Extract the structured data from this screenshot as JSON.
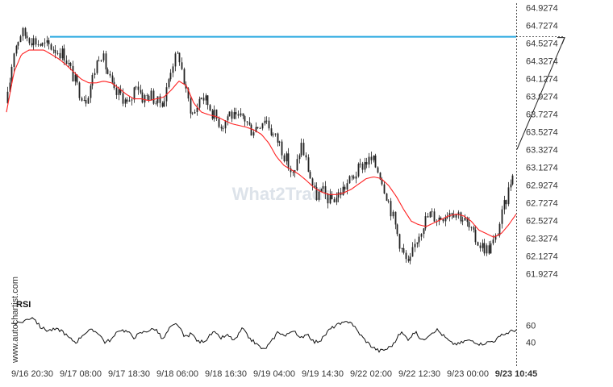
{
  "chart_data": {
    "type": "candlestick",
    "watermark": "What2Trade",
    "side_label": "www.autochartist.com",
    "indicator_label": "RSI",
    "colors": {
      "candles": "#222222",
      "moving_average": "#ff2020",
      "resistance": "#29a9e0",
      "rsi": "#111111",
      "projection": "#222222"
    },
    "price_ticks": [
      "64.9274",
      "64.7274",
      "64.5274",
      "64.3274",
      "64.1274",
      "63.9274",
      "63.7274",
      "63.5274",
      "63.3274",
      "63.1274",
      "62.9274",
      "62.7274",
      "62.5274",
      "62.3274",
      "62.1274",
      "61.9274"
    ],
    "ylim": [
      61.85,
      64.96
    ],
    "rsi_ticks": [
      "60",
      "40"
    ],
    "rsi_ylim": [
      18,
      82
    ],
    "x_ticks": [
      "9/16 20:30",
      "9/17 08:00",
      "9/17 18:30",
      "9/18 06:00",
      "9/18 16:30",
      "9/19 04:00",
      "9/19 14:30",
      "9/22 02:00",
      "9/22 12:30",
      "9/23 00:00",
      "9/23 10:45"
    ],
    "resistance_level": 64.6,
    "projection": {
      "from": 63.33,
      "to": 64.6
    },
    "price_path": [
      63.85,
      64.45,
      64.65,
      64.6,
      64.55,
      64.5,
      64.5,
      64.45,
      64.4,
      64.2,
      64.0,
      63.9,
      64.15,
      64.45,
      64.2,
      63.95,
      63.95,
      63.8,
      64.1,
      63.9,
      63.95,
      63.85,
      63.9,
      64.3,
      64.4,
      63.95,
      63.7,
      63.95,
      63.85,
      63.7,
      63.6,
      63.75,
      63.65,
      63.7,
      63.55,
      63.6,
      63.7,
      63.5,
      63.4,
      63.2,
      63.0,
      63.4,
      63.1,
      62.8,
      62.85,
      62.75,
      62.8,
      62.9,
      63.0,
      63.1,
      63.2,
      63.2,
      63.05,
      62.8,
      62.5,
      62.2,
      62.0,
      62.3,
      62.5,
      62.6,
      62.55,
      62.6,
      62.65,
      62.6,
      62.5,
      62.35,
      62.25,
      62.2,
      62.3,
      62.6,
      62.9,
      63.33
    ],
    "ma_path": [
      63.75,
      64.2,
      64.4,
      64.45,
      64.45,
      64.45,
      64.4,
      64.35,
      64.28,
      64.2,
      64.12,
      64.08,
      64.08,
      64.1,
      64.08,
      64.02,
      63.95,
      63.9,
      63.9,
      63.88,
      63.9,
      63.92,
      64.0,
      64.1,
      64.05,
      63.85,
      63.75,
      63.72,
      63.7,
      63.66,
      63.62,
      63.6,
      63.58,
      63.55,
      63.5,
      63.4,
      63.25,
      63.15,
      63.1,
      63.05,
      62.98,
      62.9,
      62.85,
      62.82,
      62.82,
      62.84,
      62.88,
      62.94,
      63.0,
      63.02,
      63.0,
      62.92,
      62.8,
      62.65,
      62.52,
      62.48,
      62.46,
      62.5,
      62.54,
      62.58,
      62.6,
      62.58,
      62.52,
      62.42,
      62.38,
      62.34,
      62.38,
      62.48,
      62.6
    ],
    "rsi_path": [
      62,
      62,
      66,
      70,
      58,
      54,
      55,
      54,
      45,
      40,
      50,
      54,
      52,
      40,
      44,
      55,
      53,
      46,
      51,
      54,
      56,
      43,
      57,
      62,
      46,
      50,
      40,
      43,
      52,
      45,
      48,
      42,
      56,
      45,
      38,
      31,
      40,
      53,
      47,
      55,
      44,
      51,
      40,
      43,
      54,
      60,
      62,
      65,
      53,
      43,
      35,
      30,
      32,
      38,
      52,
      44,
      52,
      42,
      50,
      55,
      47,
      39,
      38,
      42,
      42,
      38,
      40,
      42,
      48,
      52,
      55
    ]
  }
}
